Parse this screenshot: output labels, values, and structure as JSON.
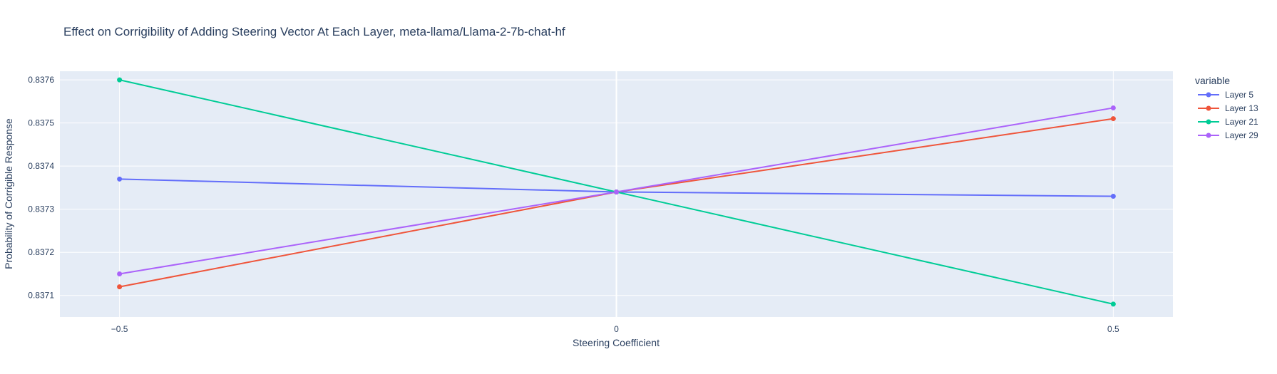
{
  "chart_data": {
    "type": "line",
    "title": "Effect on Corrigibility of Adding Steering Vector At Each Layer, meta-llama/Llama-2-7b-chat-hf",
    "xlabel": "Steering Coefficient",
    "ylabel": "Probability of Corrigible Response",
    "x": [
      -0.5,
      0,
      0.5
    ],
    "x_tick_labels": [
      "−0.5",
      "0",
      "0.5"
    ],
    "xlim": [
      -0.56,
      0.56
    ],
    "ylim": [
      0.83705,
      0.83762
    ],
    "y_ticks": [
      0.8371,
      0.8372,
      0.8373,
      0.8374,
      0.8375,
      0.8376
    ],
    "y_tick_labels": [
      "0.8371",
      "0.8372",
      "0.8373",
      "0.8374",
      "0.8375",
      "0.8376"
    ],
    "grid": true,
    "legend_title": "variable",
    "legend_position": "right",
    "series": [
      {
        "name": "Layer 5",
        "color": "#636efa",
        "values": [
          0.83737,
          0.83734,
          0.83733
        ]
      },
      {
        "name": "Layer 13",
        "color": "#ef553b",
        "values": [
          0.83712,
          0.83734,
          0.83751
        ]
      },
      {
        "name": "Layer 21",
        "color": "#00cc96",
        "values": [
          0.8376,
          0.83734,
          0.83708
        ]
      },
      {
        "name": "Layer 29",
        "color": "#ab63fa",
        "values": [
          0.83715,
          0.83734,
          0.837535
        ]
      }
    ]
  }
}
